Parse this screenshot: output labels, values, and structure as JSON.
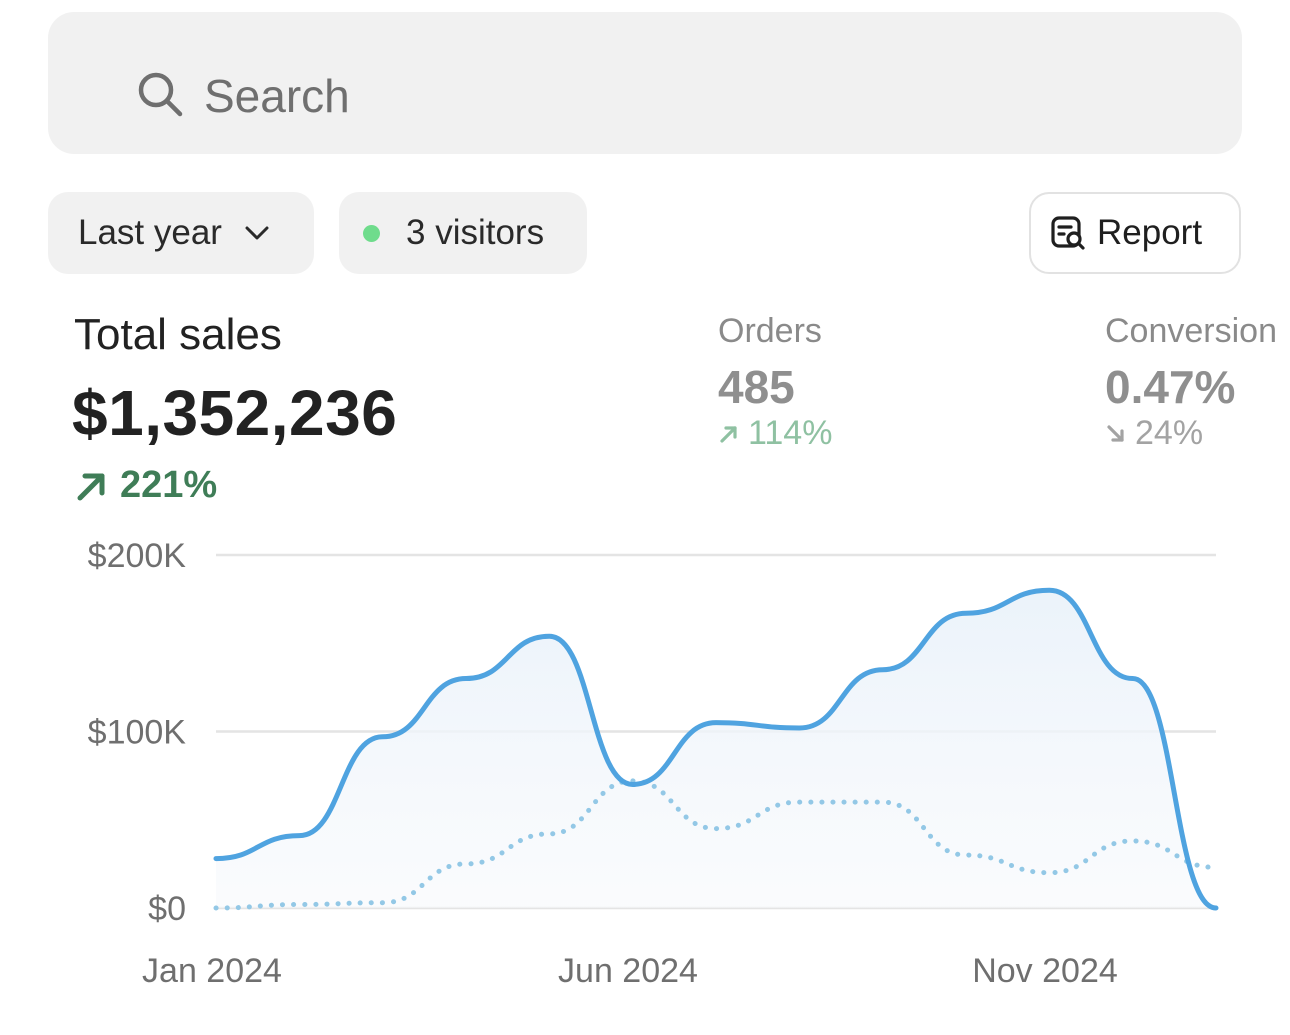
{
  "search": {
    "placeholder": "Search"
  },
  "filters": {
    "range_label": "Last year",
    "visitors_label": "3 visitors",
    "visitors_dot_color": "#6fdc8c",
    "report_label": "Report"
  },
  "metrics": {
    "total": {
      "label": "Total sales",
      "value": "$1,352,236",
      "change": "221%",
      "direction": "up",
      "color": "#3f7d57"
    },
    "orders": {
      "label": "Orders",
      "value": "485",
      "change": "114%",
      "direction": "up"
    },
    "conversion": {
      "label": "Conversion",
      "value": "0.47%",
      "change": "24%",
      "direction": "down"
    }
  },
  "chart_data": {
    "type": "line",
    "y_ticks": [
      "$200K",
      "$100K",
      "$0"
    ],
    "x_ticks": [
      "Jan 2024",
      "Jun 2024",
      "Nov 2024"
    ],
    "ylim": [
      0,
      200000
    ],
    "grid": true,
    "series": [
      {
        "style": "solid",
        "color": "#4fa3e0",
        "fill": true,
        "values": [
          28000,
          41000,
          97000,
          130000,
          154000,
          70000,
          105000,
          102000,
          135000,
          167000,
          180000,
          130000,
          0
        ]
      },
      {
        "style": "dotted",
        "color": "#93c8e6",
        "values": [
          0,
          2000,
          3000,
          25000,
          42000,
          72000,
          45000,
          60000,
          60000,
          30000,
          20000,
          38000,
          23000
        ]
      }
    ]
  }
}
